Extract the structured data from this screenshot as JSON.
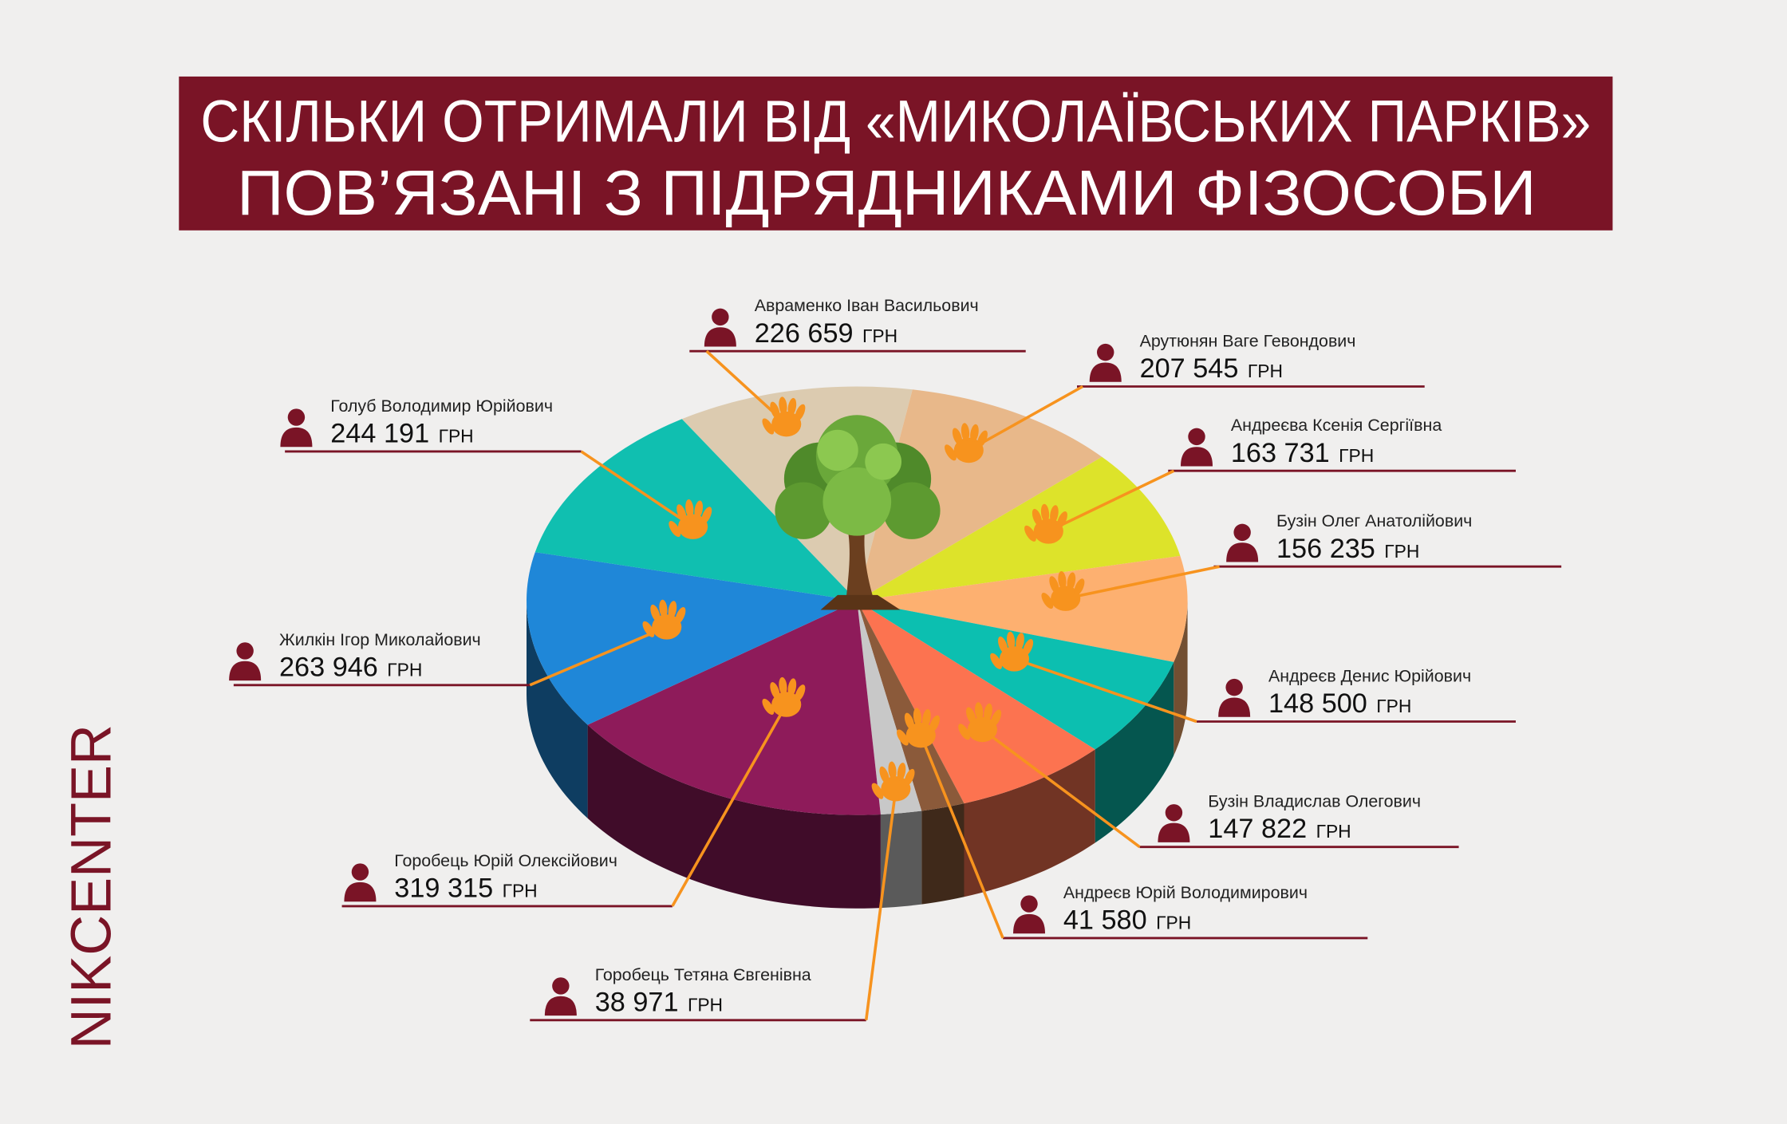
{
  "chart_data": {
    "type": "pie",
    "title": [
      "СКІЛЬКИ ОТРИМАЛИ ВІД «МИКОЛАЇВСЬКИХ ПАРКІВ»",
      "ПОВ’ЯЗАНІ З ПІДРЯДНИКАМИ ФІЗОСОБИ"
    ],
    "categories": [
      "Авраменко Іван Васильович",
      "Арутюнян Ваге Гевондович",
      "Андреєва Ксенія Сергіївна",
      "Бузін Олег Анатолійович",
      "Андреєв Денис Юрійович",
      "Бузін Владислав Олегович",
      "Андреєв Юрій Володимирович",
      "Горобець Тетяна Євгенівна",
      "Горобець Юрій Олексійович",
      "Жилкін Ігор Миколайович",
      "Голуб Володимир Юрійович"
    ],
    "values": [
      226659,
      207545,
      163731,
      156235,
      148500,
      147822,
      41580,
      38971,
      319315,
      263946,
      244191
    ],
    "value_labels": [
      "226 659",
      "207 545",
      "163 731",
      "156 235",
      "148 500",
      "147 822",
      "41 580",
      "38 971",
      "319 315",
      "263 946",
      "244 191"
    ],
    "unit": "ГРН",
    "colors": [
      "#dccbb0",
      "#e8b88a",
      "#dde32a",
      "#fdb070",
      "#0cbfb0",
      "#fc7350",
      "#8b5a3a",
      "#c8c8c8",
      "#8e1b5a",
      "#1f87d8",
      "#10bfb0"
    ]
  },
  "logo": "NIKCENTER"
}
